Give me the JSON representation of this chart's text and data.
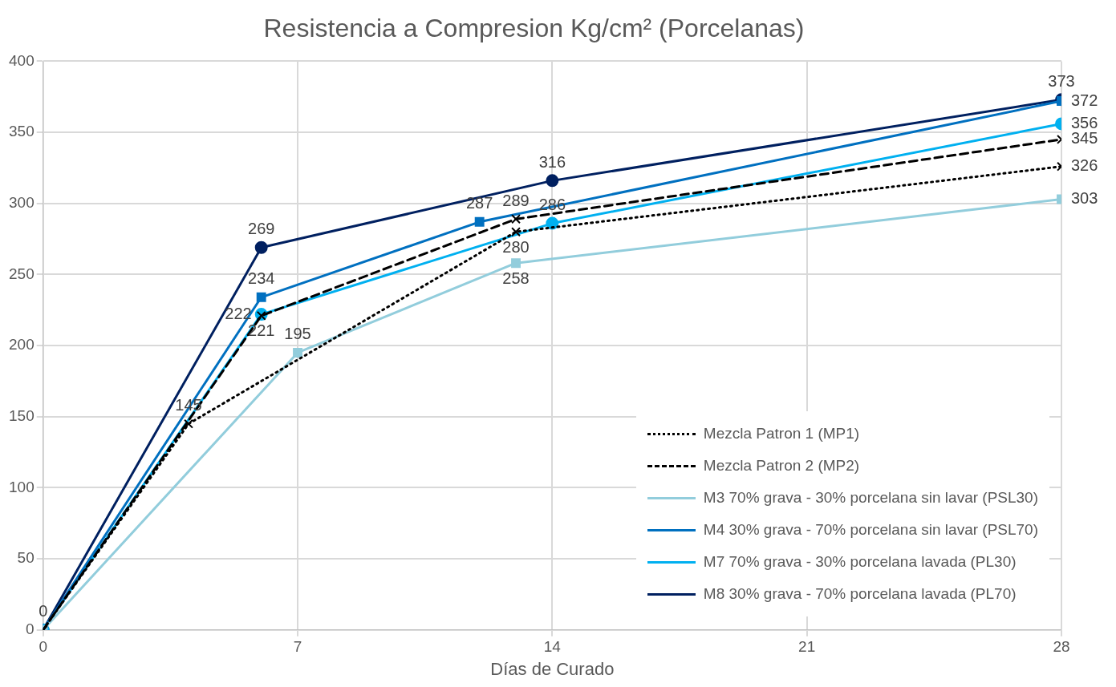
{
  "chart_data": {
    "type": "line",
    "title": "Resistencia a Compresion Kg/cm² (Porcelanas)",
    "xlabel": "Días de Curado",
    "xlim": [
      0,
      28
    ],
    "xticks": [
      0,
      7,
      14,
      21,
      28
    ],
    "ylim": [
      0,
      400
    ],
    "yticks": [
      0,
      50,
      100,
      150,
      200,
      250,
      300,
      350,
      400
    ],
    "grid": true,
    "legend": "bottom right",
    "series": [
      {
        "name": "Mezcla Patron 1 (MP1)",
        "color": "#000000",
        "line_style": "dotted",
        "marker": "cross",
        "x": [
          0,
          4,
          13,
          28
        ],
        "values": [
          0,
          145,
          280,
          326
        ],
        "value_labels": [
          null,
          "145",
          "280",
          "326"
        ]
      },
      {
        "name": "Mezcla Patron 2 (MP2)",
        "color": "#000000",
        "line_style": "dashed",
        "marker": "cross",
        "x": [
          0,
          6,
          13,
          28
        ],
        "values": [
          0,
          221,
          289,
          345
        ],
        "value_labels": [
          null,
          "221",
          "289",
          "345"
        ]
      },
      {
        "name": "M3 70% grava - 30% porcelana sin lavar (PSL30)",
        "color": "#92cddc",
        "line_style": "solid",
        "marker": "square",
        "x": [
          0,
          7,
          13,
          28
        ],
        "values": [
          0,
          195,
          258,
          303
        ],
        "value_labels": [
          null,
          "195",
          "258",
          "303"
        ]
      },
      {
        "name": "M4 30% grava - 70% porcelana sin lavar (PSL70)",
        "color": "#0070c0",
        "line_style": "solid",
        "marker": "square",
        "x": [
          0,
          6,
          12,
          28
        ],
        "values": [
          0,
          234,
          287,
          372
        ],
        "value_labels": [
          null,
          "234",
          "287",
          "372"
        ]
      },
      {
        "name": "M7 70% grava - 30% porcelana lavada (PL30)",
        "color": "#00b0f0",
        "line_style": "solid",
        "marker": "circle",
        "x": [
          0,
          6,
          14,
          28
        ],
        "values": [
          0,
          222,
          286,
          356
        ],
        "value_labels": [
          "0",
          "222",
          "286",
          "356"
        ]
      },
      {
        "name": "M8 30% grava - 70% porcelana lavada (PL70)",
        "color": "#002060",
        "line_style": "solid",
        "marker": "circle",
        "x": [
          0,
          6,
          14,
          28
        ],
        "values": [
          0,
          269,
          316,
          373
        ],
        "value_labels": [
          null,
          "269",
          "316",
          "373"
        ]
      }
    ]
  }
}
